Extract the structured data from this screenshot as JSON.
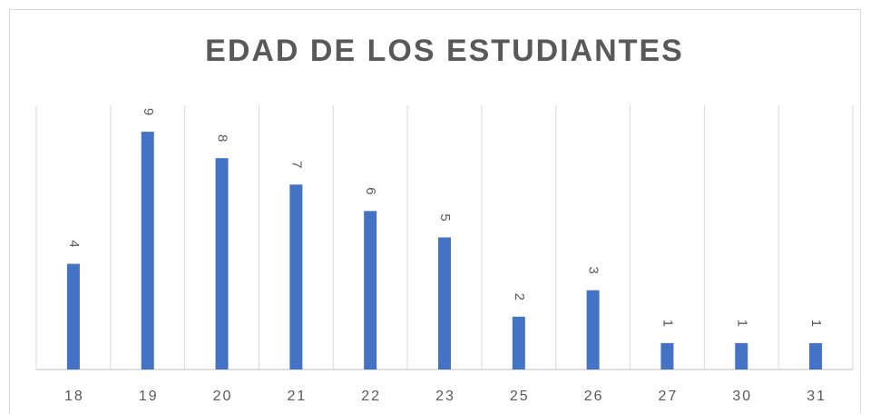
{
  "chart_data": {
    "type": "bar",
    "title": "EDAD DE LOS ESTUDIANTES",
    "categories": [
      "18",
      "19",
      "20",
      "21",
      "22",
      "23",
      "25",
      "26",
      "27",
      "30",
      "31"
    ],
    "values": [
      4,
      9,
      8,
      7,
      6,
      5,
      2,
      3,
      1,
      1,
      1
    ],
    "color": "#4472c4",
    "ylim": [
      0,
      10
    ]
  }
}
